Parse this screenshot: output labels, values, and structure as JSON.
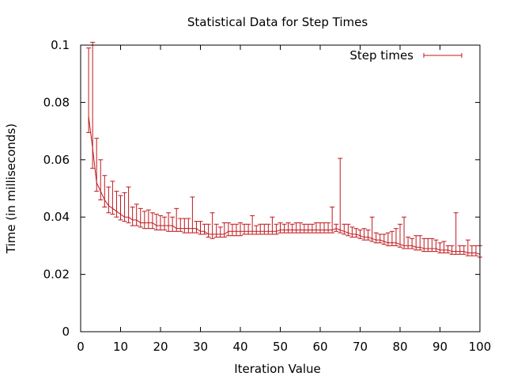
{
  "chart_data": {
    "type": "line",
    "title": "Statistical Data for Step Times",
    "xlabel": "Iteration Value",
    "ylabel": "Time (in milliseconds)",
    "xlim": [
      0,
      100
    ],
    "ylim": [
      0,
      0.1
    ],
    "xticks": [
      0,
      10,
      20,
      30,
      40,
      50,
      60,
      70,
      80,
      90,
      100
    ],
    "yticks": [
      0,
      0.02,
      0.04,
      0.06,
      0.08,
      0.1
    ],
    "xtick_labels": [
      "0",
      "10",
      "20",
      "30",
      "40",
      "50",
      "60",
      "70",
      "80",
      "90",
      "100"
    ],
    "ytick_labels": [
      "0",
      "0.02",
      "0.04",
      "0.06",
      "0.08",
      "0.1"
    ],
    "grid": false,
    "legend": "top-right",
    "series": [
      {
        "name": "Step times",
        "color": "#c0181e",
        "x": [
          2,
          3,
          4,
          5,
          6,
          7,
          8,
          9,
          10,
          11,
          12,
          13,
          14,
          15,
          16,
          17,
          18,
          19,
          20,
          21,
          22,
          23,
          24,
          25,
          26,
          27,
          28,
          29,
          30,
          31,
          32,
          33,
          34,
          35,
          36,
          37,
          38,
          39,
          40,
          41,
          42,
          43,
          44,
          45,
          46,
          47,
          48,
          49,
          50,
          51,
          52,
          53,
          54,
          55,
          56,
          57,
          58,
          59,
          60,
          61,
          62,
          63,
          64,
          65,
          66,
          67,
          68,
          69,
          70,
          71,
          72,
          73,
          74,
          75,
          76,
          77,
          78,
          79,
          80,
          81,
          82,
          83,
          84,
          85,
          86,
          87,
          88,
          89,
          90,
          91,
          92,
          93,
          94,
          95,
          96,
          97,
          98,
          99,
          100
        ],
        "y": [
          0.075,
          0.064,
          0.052,
          0.049,
          0.046,
          0.044,
          0.043,
          0.042,
          0.041,
          0.04,
          0.04,
          0.039,
          0.039,
          0.038,
          0.038,
          0.038,
          0.038,
          0.037,
          0.037,
          0.037,
          0.037,
          0.037,
          0.036,
          0.036,
          0.036,
          0.036,
          0.036,
          0.036,
          0.035,
          0.035,
          0.034,
          0.034,
          0.034,
          0.034,
          0.034,
          0.035,
          0.035,
          0.035,
          0.035,
          0.035,
          0.035,
          0.035,
          0.035,
          0.035,
          0.035,
          0.035,
          0.035,
          0.035,
          0.0355,
          0.0355,
          0.0355,
          0.0355,
          0.0355,
          0.0355,
          0.0355,
          0.0355,
          0.0355,
          0.0355,
          0.0355,
          0.0355,
          0.0355,
          0.0355,
          0.036,
          0.0355,
          0.035,
          0.0345,
          0.034,
          0.034,
          0.0335,
          0.033,
          0.033,
          0.0325,
          0.032,
          0.032,
          0.0315,
          0.031,
          0.031,
          0.031,
          0.0305,
          0.03,
          0.03,
          0.03,
          0.0295,
          0.0295,
          0.029,
          0.029,
          0.029,
          0.029,
          0.0285,
          0.0285,
          0.0285,
          0.028,
          0.028,
          0.028,
          0.028,
          0.0275,
          0.0275,
          0.0275,
          0.027
        ],
        "y_high": [
          0.099,
          0.101,
          0.0675,
          0.06,
          0.0545,
          0.0505,
          0.0525,
          0.049,
          0.0475,
          0.0485,
          0.0505,
          0.0435,
          0.0445,
          0.043,
          0.042,
          0.0425,
          0.0415,
          0.041,
          0.0405,
          0.04,
          0.0415,
          0.04,
          0.043,
          0.0395,
          0.0395,
          0.0395,
          0.047,
          0.0385,
          0.0385,
          0.0375,
          0.0375,
          0.0415,
          0.0375,
          0.0365,
          0.038,
          0.038,
          0.0375,
          0.0375,
          0.038,
          0.0375,
          0.0375,
          0.0405,
          0.037,
          0.0375,
          0.0375,
          0.0375,
          0.04,
          0.0375,
          0.038,
          0.0375,
          0.038,
          0.0375,
          0.038,
          0.038,
          0.0375,
          0.0375,
          0.0375,
          0.038,
          0.038,
          0.038,
          0.038,
          0.0435,
          0.0375,
          0.0605,
          0.0375,
          0.0375,
          0.0365,
          0.036,
          0.0355,
          0.036,
          0.0355,
          0.04,
          0.0345,
          0.034,
          0.034,
          0.0345,
          0.035,
          0.036,
          0.0375,
          0.04,
          0.033,
          0.0325,
          0.0335,
          0.0335,
          0.0325,
          0.0325,
          0.0325,
          0.032,
          0.031,
          0.0315,
          0.03,
          0.03,
          0.0415,
          0.03,
          0.03,
          0.032,
          0.03,
          0.03,
          0.03
        ],
        "y_low": [
          0.0695,
          0.057,
          0.049,
          0.046,
          0.0435,
          0.0415,
          0.041,
          0.04,
          0.039,
          0.0385,
          0.038,
          0.037,
          0.037,
          0.0365,
          0.036,
          0.036,
          0.036,
          0.0355,
          0.0355,
          0.0355,
          0.035,
          0.035,
          0.035,
          0.035,
          0.0345,
          0.0345,
          0.0345,
          0.0345,
          0.034,
          0.034,
          0.033,
          0.0325,
          0.033,
          0.033,
          0.033,
          0.0335,
          0.0335,
          0.0335,
          0.0335,
          0.034,
          0.034,
          0.034,
          0.034,
          0.034,
          0.034,
          0.034,
          0.034,
          0.034,
          0.0345,
          0.0345,
          0.0345,
          0.0345,
          0.0345,
          0.0345,
          0.0345,
          0.0345,
          0.0345,
          0.0345,
          0.0345,
          0.0345,
          0.0345,
          0.0345,
          0.035,
          0.0345,
          0.034,
          0.0335,
          0.033,
          0.033,
          0.0325,
          0.032,
          0.032,
          0.0315,
          0.031,
          0.031,
          0.0305,
          0.03,
          0.03,
          0.03,
          0.0295,
          0.029,
          0.029,
          0.029,
          0.0285,
          0.0285,
          0.028,
          0.028,
          0.028,
          0.028,
          0.0275,
          0.0275,
          0.0275,
          0.027,
          0.027,
          0.027,
          0.027,
          0.0265,
          0.0265,
          0.0265,
          0.026
        ]
      }
    ]
  }
}
